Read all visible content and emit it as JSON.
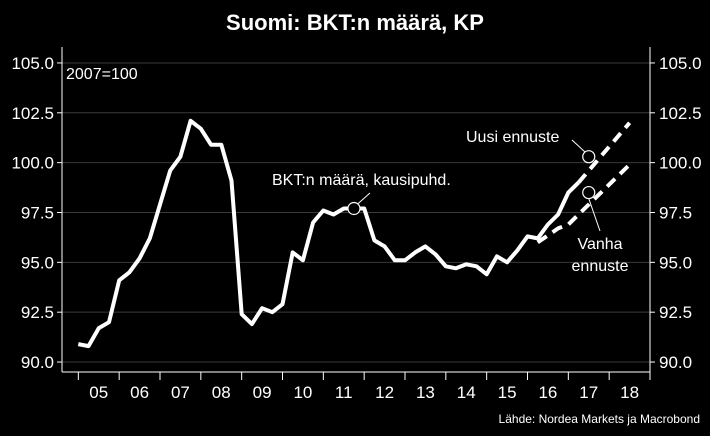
{
  "chart_data": {
    "type": "line",
    "title": "Suomi: BKT:n määrä, KP",
    "index_note": "2007=100",
    "source": "Lähde: Nordea Markets ja Macrobond",
    "ylim": [
      89.5,
      105.8
    ],
    "yticks": [
      "105.0",
      "102.5",
      "100.0",
      "97.5",
      "95.0",
      "92.5",
      "90.0"
    ],
    "ytick_values": [
      105.0,
      102.5,
      100.0,
      97.5,
      95.0,
      92.5,
      90.0
    ],
    "xticks": [
      "05",
      "06",
      "07",
      "08",
      "09",
      "10",
      "11",
      "12",
      "13",
      "14",
      "15",
      "16",
      "17",
      "18"
    ],
    "grid": true,
    "series": [
      {
        "name": "BKT:n määrä, kausipuhd.",
        "style": "solid",
        "x": [
          2005.0,
          2005.25,
          2005.5,
          2005.75,
          2006.0,
          2006.25,
          2006.5,
          2006.75,
          2007.0,
          2007.25,
          2007.5,
          2007.75,
          2008.0,
          2008.25,
          2008.5,
          2008.75,
          2009.0,
          2009.25,
          2009.5,
          2009.75,
          2010.0,
          2010.25,
          2010.5,
          2010.75,
          2011.0,
          2011.25,
          2011.5,
          2011.75,
          2012.0,
          2012.25,
          2012.5,
          2012.75,
          2013.0,
          2013.25,
          2013.5,
          2013.75,
          2014.0,
          2014.25,
          2014.5,
          2014.75,
          2015.0,
          2015.25,
          2015.5,
          2015.75,
          2016.0,
          2016.25,
          2016.5,
          2016.75,
          2017.0,
          2017.25
        ],
        "y": [
          90.9,
          90.8,
          91.7,
          92.0,
          94.1,
          94.5,
          95.2,
          96.2,
          97.9,
          99.6,
          100.3,
          102.1,
          101.7,
          100.9,
          100.9,
          99.1,
          92.4,
          91.9,
          92.7,
          92.5,
          92.9,
          95.5,
          95.1,
          97.0,
          97.6,
          97.4,
          97.7,
          97.7,
          97.7,
          96.1,
          95.8,
          95.1,
          95.1,
          95.5,
          95.8,
          95.4,
          94.8,
          94.7,
          94.9,
          94.8,
          94.4,
          95.3,
          95.0,
          95.6,
          96.3,
          96.2,
          96.9,
          97.4,
          98.5,
          99.0
        ]
      },
      {
        "name": "Uusi ennuste",
        "style": "dashed",
        "x": [
          2017.25,
          2018.5
        ],
        "y": [
          99.0,
          102.0
        ]
      },
      {
        "name": "Vanha ennuste",
        "style": "dashed",
        "x": [
          2016.25,
          2016.75,
          2017.0,
          2018.5
        ],
        "y": [
          96.0,
          96.7,
          96.9,
          99.9
        ]
      }
    ],
    "annotations": [
      {
        "text": "BKT:n määrä, kausipuhd.",
        "x": 2011.75,
        "y": 97.7
      },
      {
        "text": "Uusi ennuste",
        "x": 2017.5,
        "y": 100.3
      },
      {
        "text": "Vanha",
        "x": 2017.5,
        "y": 98.5
      },
      {
        "text": "ennuste",
        "x": 2017.5,
        "y": 98.5
      }
    ]
  }
}
